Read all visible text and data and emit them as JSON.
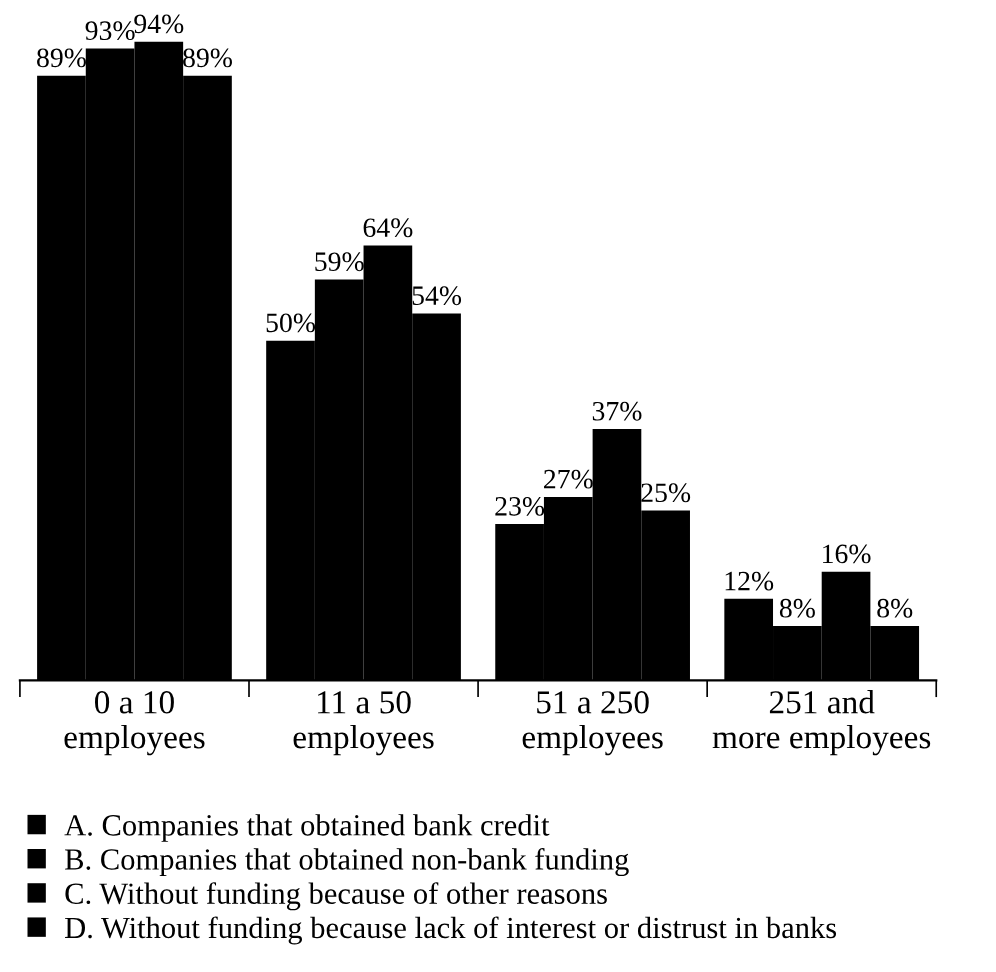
{
  "chart_data": {
    "type": "bar",
    "categories": [
      "0 a 10\nemployees",
      "11 a 50\nemployees",
      "51 a 250\nemployees",
      "251 and\nmore employees"
    ],
    "series": [
      {
        "name": "A. Companies that obtained bank credit",
        "color": "#000000",
        "values": [
          89,
          50,
          23,
          12
        ],
        "value_labels": [
          "89%",
          "50%",
          "23%",
          "12%"
        ]
      },
      {
        "name": "B. Companies that obtained non-bank funding",
        "color": "#000000",
        "values": [
          93,
          59,
          27,
          8
        ],
        "value_labels": [
          "93%",
          "59%",
          "27%",
          "8%"
        ]
      },
      {
        "name": "C. Without funding because of other reasons",
        "color": "#000000",
        "values": [
          94,
          64,
          37,
          16
        ],
        "value_labels": [
          "94%",
          "64%",
          "37%",
          "16%"
        ]
      },
      {
        "name": "D. Without funding because lack of interest or distrust in banks",
        "color": "#000000",
        "values": [
          89,
          54,
          25,
          8
        ],
        "value_labels": [
          "89%",
          "54%",
          "25%",
          "8%"
        ]
      }
    ],
    "legend": "bottom",
    "grid": false,
    "tick_labels": "x"
  }
}
